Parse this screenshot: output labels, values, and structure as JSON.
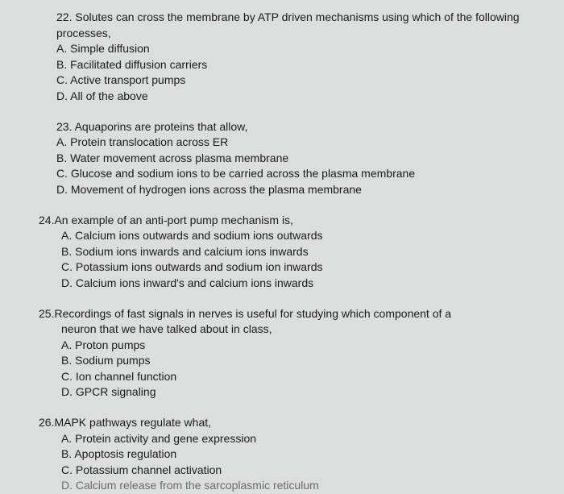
{
  "document": {
    "background_color": "#dcdedd",
    "text_color": "#1a1a1a",
    "font_family": "Arial",
    "base_font_size": 14
  },
  "questions": [
    {
      "number": "22.",
      "stem": "Solutes can cross the membrane by ATP driven mechanisms using which of the following processes,",
      "options": [
        "A. Simple diffusion",
        "B. Facilitated diffusion carriers",
        "C. Active transport pumps",
        "D. All of the above"
      ]
    },
    {
      "number": "23.",
      "stem": "Aquaporins are proteins that allow,",
      "options": [
        "A. Protein translocation across ER",
        "B. Water movement across plasma membrane",
        "C. Glucose and sodium ions to be carried across the plasma membrane",
        "D. Movement of hydrogen ions across the plasma membrane"
      ]
    },
    {
      "number": "24.",
      "stem": "An example of an anti-port pump mechanism is,",
      "options": [
        "A. Calcium ions outwards and sodium ions outwards",
        "B. Sodium ions inwards and calcium ions inwards",
        "C. Potassium ions outwards and sodium ion inwards",
        "D. Calcium ions inward's and calcium ions inwards"
      ]
    },
    {
      "number": "25.",
      "stem": "Recordings of fast signals in nerves is useful for studying which component of a neuron that we have talked about in class,",
      "stem_line1": "Recordings of fast signals in nerves is useful for studying which component of a",
      "stem_line2": "neuron that we have talked about in class,",
      "options": [
        "A.  Proton pumps",
        "B.  Sodium pumps",
        "C.  Ion channel function",
        "D.  GPCR signaling"
      ]
    },
    {
      "number": "26.",
      "stem": "MAPK pathways regulate what,",
      "options": [
        "A.  Protein activity and gene expression",
        "B.  Apoptosis regulation",
        "C.  Potassium channel activation",
        "D.  Calcium release from the sarcoplasmic reticulum"
      ]
    }
  ]
}
